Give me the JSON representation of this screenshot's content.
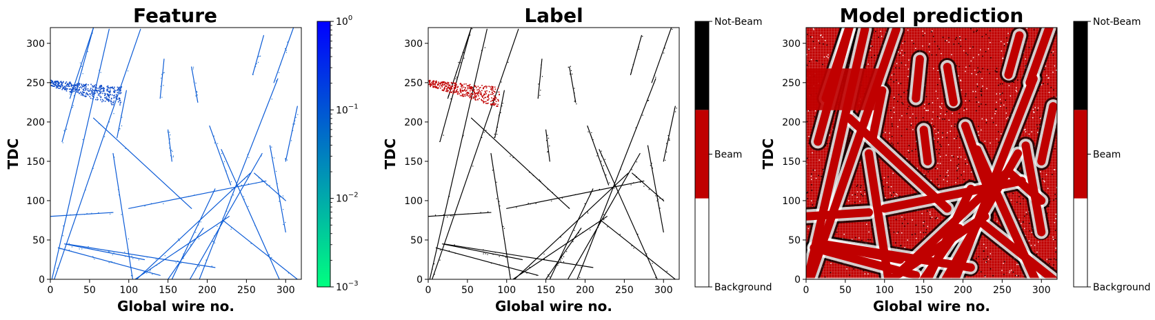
{
  "chart_data": [
    {
      "type": "heatmap",
      "title": "Feature",
      "xlabel": "Global wire no.",
      "ylabel": "TDC",
      "xlim": [
        0,
        320
      ],
      "ylim": [
        0,
        320
      ],
      "xticks": [
        "0",
        "50",
        "100",
        "150",
        "200",
        "250",
        "300"
      ],
      "yticks": [
        "0",
        "50",
        "100",
        "150",
        "200",
        "250",
        "300"
      ],
      "colorbar": {
        "scale": "log",
        "range": [
          0.001,
          1
        ],
        "ticks": [
          {
            "base": "10",
            "exp": "0",
            "value": 1
          },
          {
            "base": "10",
            "exp": "−1",
            "value": 0.1
          },
          {
            "base": "10",
            "exp": "−2",
            "value": 0.01
          },
          {
            "base": "10",
            "exp": "−3",
            "value": 0.001
          }
        ],
        "colors": [
          "#00ff80",
          "#0000ff"
        ]
      },
      "tracks": [
        {
          "x": [
            2,
            75
          ],
          "y": [
            0,
            318
          ]
        },
        {
          "x": [
            5,
            115
          ],
          "y": [
            0,
            318
          ]
        },
        {
          "x": [
            15,
            55
          ],
          "y": [
            175,
            320
          ]
        },
        {
          "x": [
            25,
            55
          ],
          "y": [
            230,
            320
          ]
        },
        {
          "x": [
            55,
            180
          ],
          "y": [
            205,
            90
          ]
        },
        {
          "x": [
            105,
            80
          ],
          "y": [
            0,
            160
          ]
        },
        {
          "x": [
            110,
            255
          ],
          "y": [
            0,
            135
          ]
        },
        {
          "x": [
            108,
            228
          ],
          "y": [
            0,
            80
          ]
        },
        {
          "x": [
            150,
            195
          ],
          "y": [
            0,
            65
          ]
        },
        {
          "x": [
            155,
            210
          ],
          "y": [
            0,
            115
          ]
        },
        {
          "x": [
            178,
            270
          ],
          "y": [
            0,
            160
          ]
        },
        {
          "x": [
            190,
            290
          ],
          "y": [
            0,
            255
          ]
        },
        {
          "x": [
            203,
            230
          ],
          "y": [
            195,
            120
          ]
        },
        {
          "x": [
            218,
            292
          ],
          "y": [
            165,
            0
          ]
        },
        {
          "x": [
            220,
            315
          ],
          "y": [
            75,
            0
          ]
        },
        {
          "x": [
            260,
            300
          ],
          "y": [
            135,
            100
          ]
        },
        {
          "x": [
            272,
            258
          ],
          "y": [
            310,
            260
          ]
        },
        {
          "x": [
            285,
            310
          ],
          "y": [
            250,
            320
          ]
        },
        {
          "x": [
            280,
            300
          ],
          "y": [
            170,
            60
          ]
        },
        {
          "x": [
            18,
            120
          ],
          "y": [
            45,
            25
          ]
        },
        {
          "x": [
            20,
            210
          ],
          "y": [
            45,
            15
          ]
        },
        {
          "x": [
            10,
            140
          ],
          "y": [
            40,
            5
          ]
        },
        {
          "x": [
            0,
            80
          ],
          "y": [
            80,
            85
          ]
        },
        {
          "x": [
            100,
            275
          ],
          "y": [
            90,
            125
          ]
        },
        {
          "x": [
            140,
            145
          ],
          "y": [
            230,
            280
          ]
        },
        {
          "x": [
            150,
            155
          ],
          "y": [
            190,
            150
          ]
        },
        {
          "x": [
            180,
            188
          ],
          "y": [
            270,
            225
          ]
        },
        {
          "x": [
            300,
            315
          ],
          "y": [
            150,
            220
          ]
        },
        {
          "x": [
            85,
            97
          ],
          "y": [
            180,
            240
          ]
        }
      ],
      "beam_cluster": {
        "x": [
          0,
          90
        ],
        "y": [
          225,
          260
        ]
      }
    },
    {
      "type": "heatmap",
      "title": "Label",
      "xlabel": "Global wire no.",
      "ylabel": "TDC",
      "xlim": [
        0,
        320
      ],
      "ylim": [
        0,
        320
      ],
      "xticks": [
        "0",
        "50",
        "100",
        "150",
        "200",
        "250",
        "300"
      ],
      "yticks": [
        "0",
        "50",
        "100",
        "150",
        "200",
        "250",
        "300"
      ],
      "colorbar": {
        "scale": "categorical",
        "categories": [
          "Background",
          "Beam",
          "Not-Beam"
        ],
        "colors": [
          "#ffffff",
          "#c00000",
          "#000000"
        ]
      }
    },
    {
      "type": "heatmap",
      "title": "Model prediction",
      "xlabel": "Global wire no.",
      "ylabel": "TDC",
      "xlim": [
        0,
        320
      ],
      "ylim": [
        0,
        320
      ],
      "xticks": [
        "0",
        "50",
        "100",
        "150",
        "200",
        "250",
        "300"
      ],
      "yticks": [
        "0",
        "50",
        "100",
        "150",
        "200",
        "250",
        "300"
      ],
      "colorbar": {
        "scale": "categorical",
        "categories": [
          "Background",
          "Beam",
          "Not-Beam"
        ],
        "colors": [
          "#ffffff",
          "#c00000",
          "#000000"
        ]
      }
    }
  ]
}
